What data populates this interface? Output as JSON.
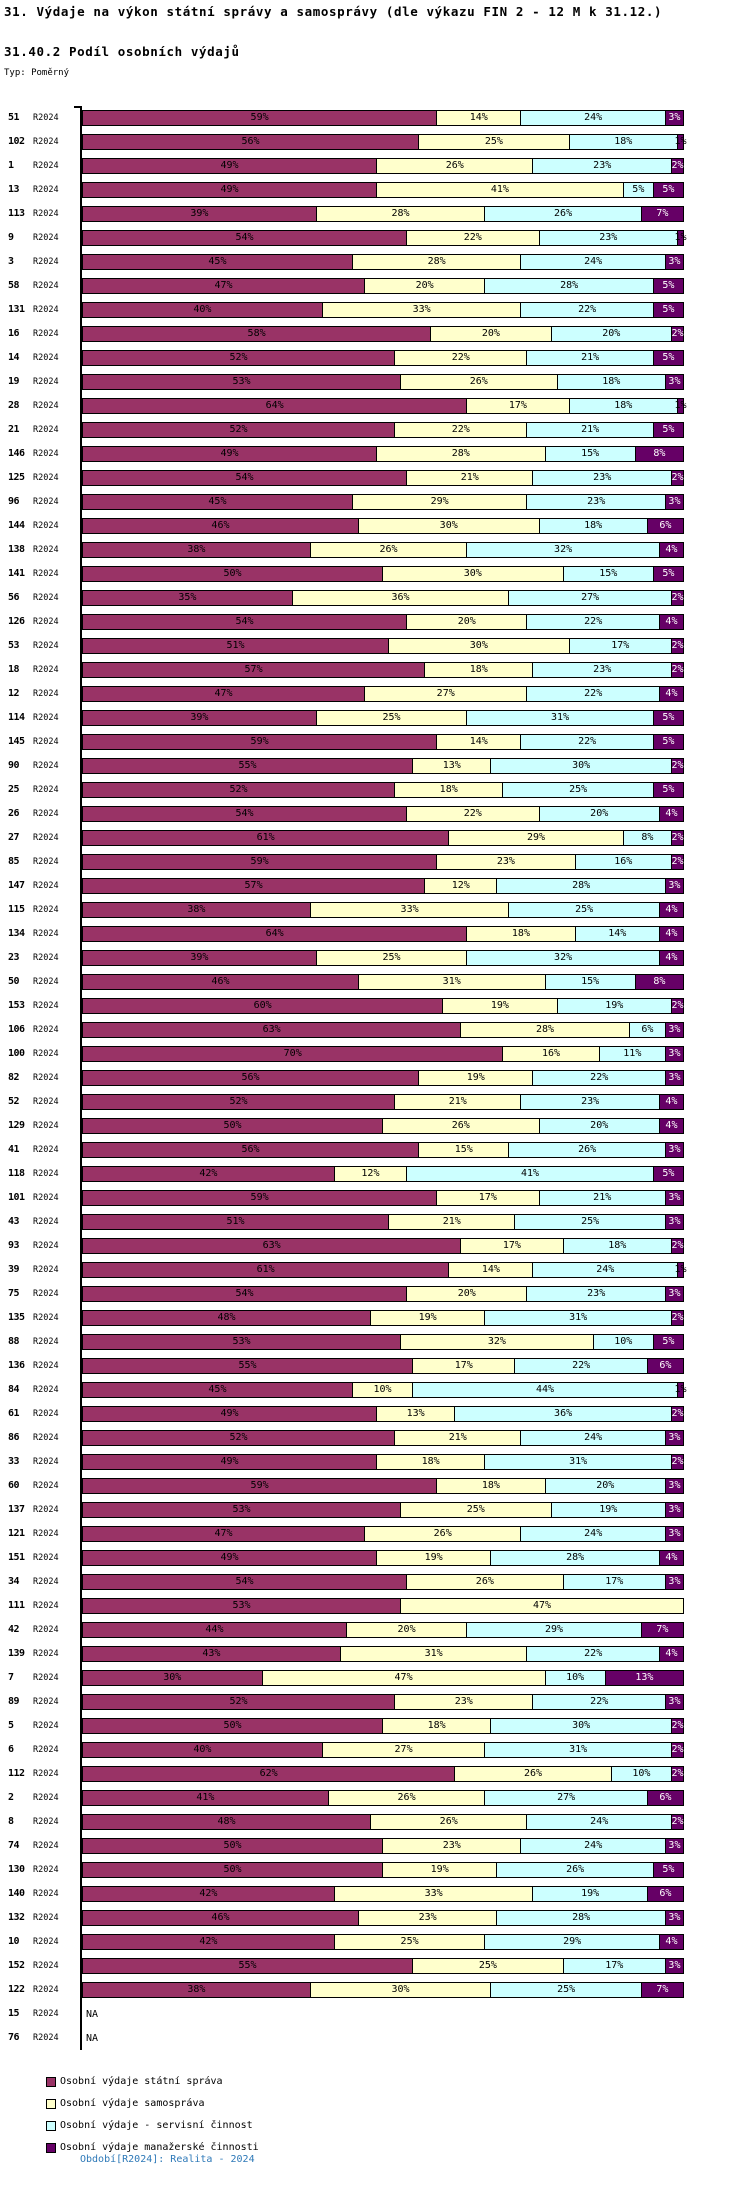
{
  "header": {
    "title": "31. Výdaje na výkon státní správy a samosprávy (dle výkazu FIN 2 - 12 M k 31.12.)",
    "subtitle": "31.40.2 Podíl osobních výdajů",
    "type_label": "Typ: Poměrný"
  },
  "footer": {
    "text": "Období[R2024]: Realita - 2024"
  },
  "colors": {
    "statni_sprava": "#993366",
    "samosprava": "#FFFFCC",
    "servisni_cinnost": "#CCFFFF",
    "manazerske_cinnosti": "#660066",
    "footer_text": "#2E79B8",
    "axis": "#000000"
  },
  "legend": {
    "items": [
      {
        "label": "Osobní výdaje státní správa",
        "color": "#993366"
      },
      {
        "label": "Osobní výdaje samospráva",
        "color": "#FFFFCC"
      },
      {
        "label": "Osobní výdaje - servisní činnost",
        "color": "#CCFFFF"
      },
      {
        "label": "Osobní výdaje manažerské činnosti",
        "color": "#660066"
      }
    ]
  },
  "chart_data": {
    "type": "bar",
    "stacked": true,
    "orientation": "horizontal",
    "unit": "%",
    "xlim": [
      0,
      100
    ],
    "grid": false,
    "legend_position": "bottom-left",
    "title": "31.40.2 Podíl osobních výdajů",
    "xlabel": "",
    "ylabel": "",
    "period_label": "R2024",
    "na_label": "NA",
    "series_names": [
      "Osobní výdaje státní správa",
      "Osobní výdaje samospráva",
      "Osobní výdaje - servisní činnost",
      "Osobní výdaje manažerské činnosti"
    ],
    "series_colors": [
      "#993366",
      "#FFFFCC",
      "#CCFFFF",
      "#660066"
    ],
    "categories": [
      "51",
      "102",
      "1",
      "13",
      "113",
      "9",
      "3",
      "58",
      "131",
      "16",
      "14",
      "19",
      "28",
      "21",
      "146",
      "125",
      "96",
      "144",
      "138",
      "141",
      "56",
      "126",
      "53",
      "18",
      "12",
      "114",
      "145",
      "90",
      "25",
      "26",
      "27",
      "85",
      "147",
      "115",
      "134",
      "23",
      "50",
      "153",
      "106",
      "100",
      "82",
      "52",
      "129",
      "41",
      "118",
      "101",
      "43",
      "93",
      "39",
      "75",
      "135",
      "88",
      "136",
      "84",
      "61",
      "86",
      "33",
      "60",
      "137",
      "121",
      "151",
      "34",
      "111",
      "42",
      "139",
      "7",
      "89",
      "5",
      "6",
      "112",
      "2",
      "8",
      "74",
      "130",
      "140",
      "132",
      "10",
      "152",
      "122",
      "15",
      "76"
    ],
    "rows": [
      {
        "id": "51",
        "period": "R2024",
        "values": [
          59,
          14,
          24,
          3
        ]
      },
      {
        "id": "102",
        "period": "R2024",
        "values": [
          56,
          25,
          18,
          1
        ]
      },
      {
        "id": "1",
        "period": "R2024",
        "values": [
          49,
          26,
          23,
          2
        ]
      },
      {
        "id": "13",
        "period": "R2024",
        "values": [
          49,
          41,
          5,
          5
        ]
      },
      {
        "id": "113",
        "period": "R2024",
        "values": [
          39,
          28,
          26,
          7
        ]
      },
      {
        "id": "9",
        "period": "R2024",
        "values": [
          54,
          22,
          23,
          1
        ]
      },
      {
        "id": "3",
        "period": "R2024",
        "values": [
          45,
          28,
          24,
          3
        ]
      },
      {
        "id": "58",
        "period": "R2024",
        "values": [
          47,
          20,
          28,
          5
        ]
      },
      {
        "id": "131",
        "period": "R2024",
        "values": [
          40,
          33,
          22,
          5
        ]
      },
      {
        "id": "16",
        "period": "R2024",
        "values": [
          58,
          20,
          20,
          2
        ]
      },
      {
        "id": "14",
        "period": "R2024",
        "values": [
          52,
          22,
          21,
          5
        ]
      },
      {
        "id": "19",
        "period": "R2024",
        "values": [
          53,
          26,
          18,
          3
        ]
      },
      {
        "id": "28",
        "period": "R2024",
        "values": [
          64,
          17,
          18,
          1
        ]
      },
      {
        "id": "21",
        "period": "R2024",
        "values": [
          52,
          22,
          21,
          5
        ]
      },
      {
        "id": "146",
        "period": "R2024",
        "values": [
          49,
          28,
          15,
          8
        ]
      },
      {
        "id": "125",
        "period": "R2024",
        "values": [
          54,
          21,
          23,
          2
        ]
      },
      {
        "id": "96",
        "period": "R2024",
        "values": [
          45,
          29,
          23,
          3
        ]
      },
      {
        "id": "144",
        "period": "R2024",
        "values": [
          46,
          30,
          18,
          6
        ]
      },
      {
        "id": "138",
        "period": "R2024",
        "values": [
          38,
          26,
          32,
          4
        ]
      },
      {
        "id": "141",
        "period": "R2024",
        "values": [
          50,
          30,
          15,
          5
        ]
      },
      {
        "id": "56",
        "period": "R2024",
        "values": [
          35,
          36,
          27,
          2
        ]
      },
      {
        "id": "126",
        "period": "R2024",
        "values": [
          54,
          20,
          22,
          4
        ]
      },
      {
        "id": "53",
        "period": "R2024",
        "values": [
          51,
          30,
          17,
          2
        ]
      },
      {
        "id": "18",
        "period": "R2024",
        "values": [
          57,
          18,
          23,
          2
        ]
      },
      {
        "id": "12",
        "period": "R2024",
        "values": [
          47,
          27,
          22,
          4
        ]
      },
      {
        "id": "114",
        "period": "R2024",
        "values": [
          39,
          25,
          31,
          5
        ]
      },
      {
        "id": "145",
        "period": "R2024",
        "values": [
          59,
          14,
          22,
          5
        ]
      },
      {
        "id": "90",
        "period": "R2024",
        "values": [
          55,
          13,
          30,
          2
        ]
      },
      {
        "id": "25",
        "period": "R2024",
        "values": [
          52,
          18,
          25,
          5
        ]
      },
      {
        "id": "26",
        "period": "R2024",
        "values": [
          54,
          22,
          20,
          4
        ]
      },
      {
        "id": "27",
        "period": "R2024",
        "values": [
          61,
          29,
          8,
          2
        ]
      },
      {
        "id": "85",
        "period": "R2024",
        "values": [
          59,
          23,
          16,
          2
        ]
      },
      {
        "id": "147",
        "period": "R2024",
        "values": [
          57,
          12,
          28,
          3
        ]
      },
      {
        "id": "115",
        "period": "R2024",
        "values": [
          38,
          33,
          25,
          4
        ]
      },
      {
        "id": "134",
        "period": "R2024",
        "values": [
          64,
          18,
          14,
          4
        ]
      },
      {
        "id": "23",
        "period": "R2024",
        "values": [
          39,
          25,
          32,
          4
        ]
      },
      {
        "id": "50",
        "period": "R2024",
        "values": [
          46,
          31,
          15,
          8
        ]
      },
      {
        "id": "153",
        "period": "R2024",
        "values": [
          60,
          19,
          19,
          2
        ]
      },
      {
        "id": "106",
        "period": "R2024",
        "values": [
          63,
          28,
          6,
          3
        ]
      },
      {
        "id": "100",
        "period": "R2024",
        "values": [
          70,
          16,
          11,
          3
        ]
      },
      {
        "id": "82",
        "period": "R2024",
        "values": [
          56,
          19,
          22,
          3
        ]
      },
      {
        "id": "52",
        "period": "R2024",
        "values": [
          52,
          21,
          23,
          4
        ]
      },
      {
        "id": "129",
        "period": "R2024",
        "values": [
          50,
          26,
          20,
          4
        ]
      },
      {
        "id": "41",
        "period": "R2024",
        "values": [
          56,
          15,
          26,
          3
        ]
      },
      {
        "id": "118",
        "period": "R2024",
        "values": [
          42,
          12,
          41,
          5
        ]
      },
      {
        "id": "101",
        "period": "R2024",
        "values": [
          59,
          17,
          21,
          3
        ]
      },
      {
        "id": "43",
        "period": "R2024",
        "values": [
          51,
          21,
          25,
          3
        ]
      },
      {
        "id": "93",
        "period": "R2024",
        "values": [
          63,
          17,
          18,
          2
        ]
      },
      {
        "id": "39",
        "period": "R2024",
        "values": [
          61,
          14,
          24,
          1
        ]
      },
      {
        "id": "75",
        "period": "R2024",
        "values": [
          54,
          20,
          23,
          3
        ]
      },
      {
        "id": "135",
        "period": "R2024",
        "values": [
          48,
          19,
          31,
          2
        ]
      },
      {
        "id": "88",
        "period": "R2024",
        "values": [
          53,
          32,
          10,
          5
        ]
      },
      {
        "id": "136",
        "period": "R2024",
        "values": [
          55,
          17,
          22,
          6
        ]
      },
      {
        "id": "84",
        "period": "R2024",
        "values": [
          45,
          10,
          44,
          1
        ]
      },
      {
        "id": "61",
        "period": "R2024",
        "values": [
          49,
          13,
          36,
          2
        ]
      },
      {
        "id": "86",
        "period": "R2024",
        "values": [
          52,
          21,
          24,
          3
        ]
      },
      {
        "id": "33",
        "period": "R2024",
        "values": [
          49,
          18,
          31,
          2
        ]
      },
      {
        "id": "60",
        "period": "R2024",
        "values": [
          59,
          18,
          20,
          3
        ]
      },
      {
        "id": "137",
        "period": "R2024",
        "values": [
          53,
          25,
          19,
          3
        ]
      },
      {
        "id": "121",
        "period": "R2024",
        "values": [
          47,
          26,
          24,
          3
        ]
      },
      {
        "id": "151",
        "period": "R2024",
        "values": [
          49,
          19,
          28,
          4
        ]
      },
      {
        "id": "34",
        "period": "R2024",
        "values": [
          54,
          26,
          17,
          3
        ]
      },
      {
        "id": "111",
        "period": "R2024",
        "values": [
          53,
          47,
          0,
          0
        ]
      },
      {
        "id": "42",
        "period": "R2024",
        "values": [
          44,
          20,
          29,
          7
        ]
      },
      {
        "id": "139",
        "period": "R2024",
        "values": [
          43,
          31,
          22,
          4
        ]
      },
      {
        "id": "7",
        "period": "R2024",
        "values": [
          30,
          47,
          10,
          13
        ]
      },
      {
        "id": "89",
        "period": "R2024",
        "values": [
          52,
          23,
          22,
          3
        ]
      },
      {
        "id": "5",
        "period": "R2024",
        "values": [
          50,
          18,
          30,
          2
        ]
      },
      {
        "id": "6",
        "period": "R2024",
        "values": [
          40,
          27,
          31,
          2
        ]
      },
      {
        "id": "112",
        "period": "R2024",
        "values": [
          62,
          26,
          10,
          2
        ]
      },
      {
        "id": "2",
        "period": "R2024",
        "values": [
          41,
          26,
          27,
          6
        ]
      },
      {
        "id": "8",
        "period": "R2024",
        "values": [
          48,
          26,
          24,
          2
        ]
      },
      {
        "id": "74",
        "period": "R2024",
        "values": [
          50,
          23,
          24,
          3
        ]
      },
      {
        "id": "130",
        "period": "R2024",
        "values": [
          50,
          19,
          26,
          5
        ]
      },
      {
        "id": "140",
        "period": "R2024",
        "values": [
          42,
          33,
          19,
          6
        ]
      },
      {
        "id": "132",
        "period": "R2024",
        "values": [
          46,
          23,
          28,
          3
        ]
      },
      {
        "id": "10",
        "period": "R2024",
        "values": [
          42,
          25,
          29,
          4
        ]
      },
      {
        "id": "152",
        "period": "R2024",
        "values": [
          55,
          25,
          17,
          3
        ]
      },
      {
        "id": "122",
        "period": "R2024",
        "values": [
          38,
          30,
          25,
          7
        ]
      },
      {
        "id": "15",
        "period": "R2024",
        "values": null
      },
      {
        "id": "76",
        "period": "R2024",
        "values": null
      }
    ]
  }
}
